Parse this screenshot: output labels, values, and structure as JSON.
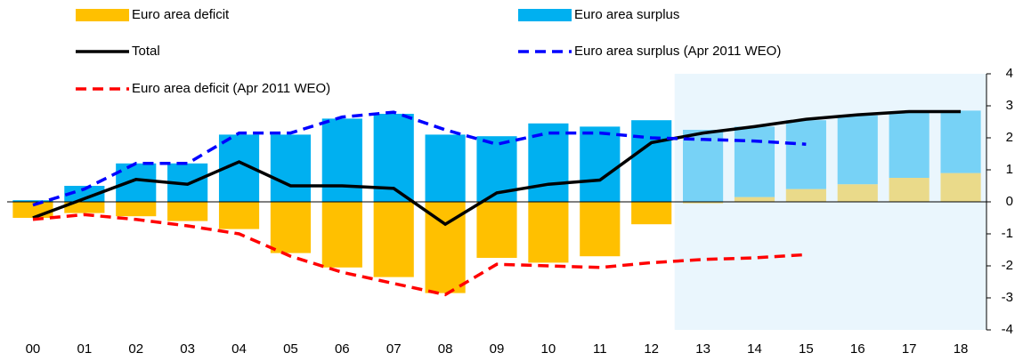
{
  "chart_data": {
    "type": "bar",
    "categories": [
      "00",
      "01",
      "02",
      "03",
      "04",
      "05",
      "06",
      "07",
      "08",
      "09",
      "10",
      "11",
      "12",
      "13",
      "14",
      "15",
      "16",
      "17",
      "18"
    ],
    "forecast_from": "13",
    "series": [
      {
        "name": "Euro area deficit",
        "type": "bar",
        "color": "#FFC000",
        "values": [
          -0.5,
          -0.35,
          -0.45,
          -0.6,
          -0.85,
          -1.6,
          -2.05,
          -2.35,
          -2.85,
          -1.75,
          -1.9,
          -1.7,
          -0.7,
          -0.05,
          0.15,
          0.4,
          0.55,
          0.75,
          0.9
        ]
      },
      {
        "name": "Euro area surplus",
        "type": "bar",
        "color": "#00B0F0",
        "values": [
          0.05,
          0.5,
          1.2,
          1.2,
          2.1,
          2.1,
          2.6,
          2.75,
          2.1,
          2.05,
          2.45,
          2.35,
          2.55,
          2.25,
          2.2,
          2.15,
          2.15,
          2.05,
          1.95
        ]
      },
      {
        "name": "Total",
        "type": "line",
        "color": "#000000",
        "dashed": false,
        "values": [
          -0.5,
          0.1,
          0.7,
          0.55,
          1.25,
          0.5,
          0.5,
          0.42,
          -0.7,
          0.28,
          0.55,
          0.68,
          1.85,
          2.15,
          2.35,
          2.58,
          2.72,
          2.82,
          2.82
        ]
      },
      {
        "name": "Euro area surplus (Apr 2011 WEO)",
        "type": "line",
        "color": "#0000FF",
        "dashed": true,
        "values": [
          -0.1,
          0.4,
          1.2,
          1.2,
          2.15,
          2.15,
          2.65,
          2.8,
          2.25,
          1.8,
          2.15,
          2.15,
          2.0,
          1.95,
          1.9,
          1.8,
          null,
          null,
          null
        ]
      },
      {
        "name": "Euro area deficit (Apr 2011 WEO)",
        "type": "line",
        "color": "#FF0000",
        "dashed": true,
        "values": [
          -0.55,
          -0.4,
          -0.55,
          -0.75,
          -1.0,
          -1.7,
          -2.2,
          -2.55,
          -2.9,
          -1.95,
          -2.0,
          -2.05,
          -1.9,
          -1.8,
          -1.75,
          -1.65,
          null,
          null,
          null
        ]
      }
    ],
    "ylim": [
      -4,
      4
    ],
    "yticks": [
      -4,
      -3,
      -2,
      -1,
      0,
      1,
      2,
      3,
      4
    ],
    "y_axis_side": "right"
  }
}
